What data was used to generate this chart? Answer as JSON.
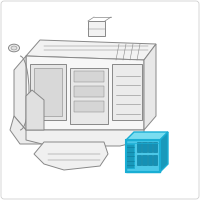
{
  "bg_color": "#ffffff",
  "line_color": "#888888",
  "highlight_color": "#1aaed4",
  "highlight_fill": "#4bc8e8",
  "highlight_dark": "#1899bb",
  "lw": 0.7,
  "fig_size": [
    2.0,
    2.0
  ],
  "dpi": 100
}
